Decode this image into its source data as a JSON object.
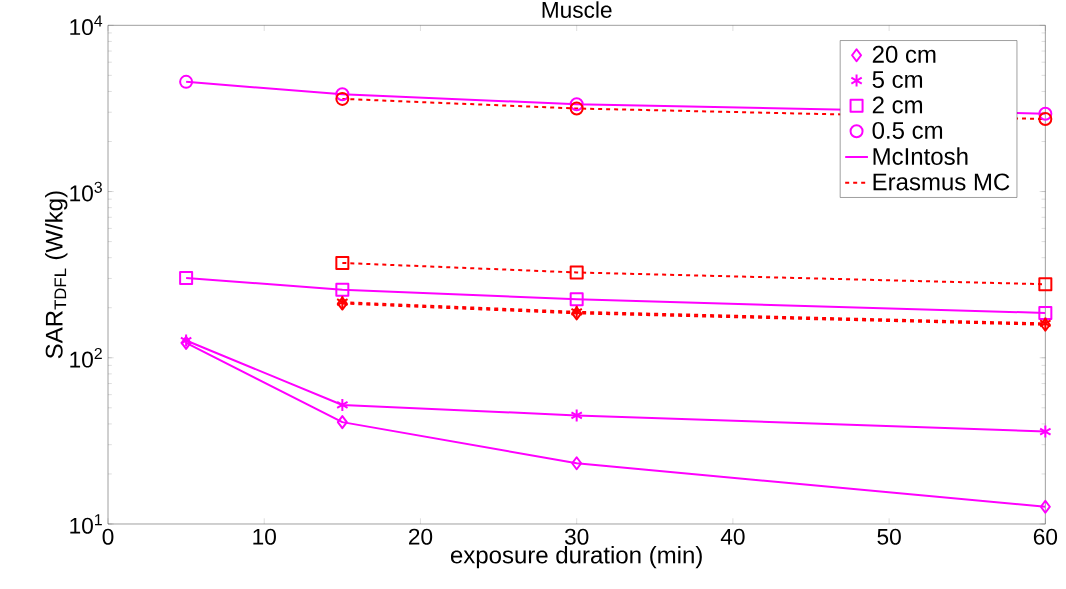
{
  "chart_data": {
    "type": "line",
    "title": "Muscle",
    "xlabel": "exposure duration (min)",
    "ylabel": "SAR$_{TDFL}$ (W/kg)",
    "log": "y",
    "xlim": [
      0,
      60
    ],
    "xticks": [
      0,
      10,
      20,
      30,
      40,
      50,
      60
    ],
    "ylim": [
      10,
      10000
    ],
    "yticks": [
      {
        "value": 10,
        "label": "10$^{1}$"
      },
      {
        "value": 100,
        "label": "10$^{2}$"
      },
      {
        "value": 1000,
        "label": "10$^{3}$"
      },
      {
        "value": 10000,
        "label": "10$^{4}$"
      }
    ],
    "grid": false,
    "legend": "top right",
    "series": [
      {
        "name": "20 cm",
        "color": "#ff00ff",
        "marker": "diamond",
        "line_style": "solid",
        "x": [
          5,
          15,
          30,
          60
        ],
        "values": [
          123,
          41,
          23.2,
          12.7
        ]
      },
      {
        "name": "5 cm",
        "color": "#ff00ff",
        "marker": "cross",
        "line_style": "solid",
        "x": [
          5,
          15,
          30,
          60
        ],
        "values": [
          127,
          52,
          45,
          36
        ]
      },
      {
        "name": "2 cm",
        "color": "#ff00ff",
        "marker": "square",
        "line_style": "solid",
        "x": [
          5,
          15,
          30,
          60
        ],
        "values": [
          302,
          257,
          225,
          186
        ]
      },
      {
        "name": "0.5 cm",
        "color": "#ff00ff",
        "marker": "circle",
        "line_style": "solid",
        "x": [
          5,
          15,
          30,
          60
        ],
        "values": [
          4570,
          3850,
          3350,
          2940
        ]
      },
      {
        "name": "McIntosh",
        "color": "#ff00ff",
        "marker": "none",
        "line_style": "solid"
      },
      {
        "name": "Erasmus MC",
        "color": "#ff0000",
        "marker": "none",
        "line_style": "dashed"
      },
      {
        "color": "#ff0000",
        "marker": "diamond",
        "line_style": "dashed",
        "x": [
          15,
          30,
          60
        ],
        "values": [
          212,
          185,
          158
        ]
      },
      {
        "color": "#ff0000",
        "marker": "cross",
        "line_style": "dashed",
        "x": [
          15,
          30,
          60
        ],
        "values": [
          216,
          189,
          161
        ]
      },
      {
        "color": "#ff0000",
        "marker": "square",
        "line_style": "dashed",
        "x": [
          15,
          30,
          60
        ],
        "values": [
          372,
          326,
          277
        ]
      },
      {
        "color": "#ff0000",
        "marker": "circle",
        "line_style": "dashed",
        "x": [
          15,
          30,
          60
        ],
        "values": [
          3610,
          3160,
          2730
        ]
      }
    ]
  }
}
